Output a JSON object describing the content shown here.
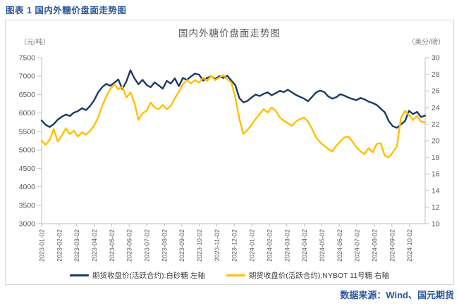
{
  "header": {
    "caption": "图表 1 国内外糖价盘面走势图"
  },
  "footer": {
    "source": "数据来源：Wind、国元期货"
  },
  "colors": {
    "accent_blue": "#2B579A",
    "domestic_line": "#1B3A66",
    "nybot_line": "#FFC000",
    "axis_gray": "#BFBFBF",
    "text_gray": "#595959"
  },
  "chart_data": {
    "type": "line",
    "title": "国内外糖价盘面走势图",
    "left_axis": {
      "unit": "（元/吨）",
      "min": 3000,
      "max": 7500,
      "step": 500,
      "ticks": [
        7500,
        7000,
        6500,
        6000,
        5500,
        5000,
        4500,
        4000,
        3500,
        3000
      ]
    },
    "right_axis": {
      "unit": "（美分/磅）",
      "min": 10,
      "max": 30,
      "step": 2,
      "ticks": [
        30,
        28,
        26,
        24,
        22,
        20,
        18,
        16,
        14,
        12,
        10
      ]
    },
    "grid": "off",
    "legend_position": "bottom",
    "x_labels": [
      "2023-01-02",
      "2023-02-02",
      "2023-03-02",
      "2023-04-02",
      "2023-05-02",
      "2023-06-02",
      "2023-07-02",
      "2023-08-02",
      "2023-09-02",
      "2023-10-02",
      "2023-11-02",
      "2023-12-02",
      "2024-01-02",
      "2024-02-02",
      "2024-03-02",
      "2024-04-02",
      "2024-05-02",
      "2024-06-02",
      "2024-07-02",
      "2024-08-02",
      "2024-09-02",
      "2024-10-02"
    ],
    "x_sampling": "weekly",
    "legend": [
      {
        "id": "domestic",
        "label": "期货收盘价(活跃合约):白砂糖 左轴",
        "color": "#1B3A66"
      },
      {
        "id": "nybot",
        "label": "期货收盘价(活跃合约):NYBOT 11号糖 右轴",
        "color": "#FFC000"
      }
    ],
    "series": [
      {
        "id": "domestic",
        "name": "期货收盘价(活跃合约):白砂糖",
        "axis": "left",
        "color": "#1B3A66",
        "values": [
          5800,
          5680,
          5620,
          5700,
          5820,
          5900,
          5960,
          5920,
          6010,
          6050,
          6130,
          6080,
          6190,
          6340,
          6560,
          6700,
          6790,
          6740,
          6820,
          6910,
          6650,
          6860,
          7160,
          6940,
          6780,
          6900,
          6760,
          6700,
          6830,
          6750,
          6660,
          6870,
          6800,
          6940,
          6730,
          6950,
          6900,
          6990,
          7070,
          7040,
          6880,
          6950,
          7000,
          6920,
          7000,
          6950,
          7010,
          6880,
          6750,
          6400,
          6290,
          6330,
          6420,
          6500,
          6460,
          6520,
          6560,
          6480,
          6540,
          6600,
          6570,
          6630,
          6560,
          6490,
          6440,
          6390,
          6320,
          6440,
          6560,
          6610,
          6570,
          6450,
          6390,
          6430,
          6510,
          6470,
          6420,
          6380,
          6350,
          6410,
          6370,
          6310,
          6270,
          6220,
          6120,
          6020,
          5780,
          5640,
          5600,
          5690,
          5780,
          6060,
          5970,
          6030,
          5890,
          5930
        ]
      },
      {
        "id": "nybot",
        "name": "期货收盘价(活跃合约):NYBOT 11号糖",
        "axis": "right",
        "color": "#FFC000",
        "values": [
          20.0,
          19.5,
          20.1,
          21.4,
          19.9,
          20.6,
          21.5,
          20.8,
          21.2,
          20.5,
          21.0,
          20.7,
          21.2,
          21.8,
          22.8,
          24.2,
          25.3,
          26.2,
          26.8,
          26.2,
          26.5,
          25.2,
          25.8,
          24.6,
          22.5,
          23.3,
          23.6,
          24.6,
          24.0,
          23.8,
          24.3,
          23.8,
          24.2,
          25.1,
          25.9,
          26.8,
          27.3,
          26.9,
          27.3,
          27.0,
          27.6,
          27.2,
          27.8,
          27.3,
          27.6,
          27.9,
          27.4,
          27.0,
          25.2,
          22.6,
          20.8,
          21.3,
          21.9,
          22.6,
          23.2,
          23.8,
          23.4,
          24.0,
          23.6,
          22.8,
          22.4,
          22.1,
          21.8,
          22.3,
          22.6,
          22.8,
          22.3,
          21.4,
          20.4,
          19.8,
          19.4,
          19.0,
          18.7,
          19.4,
          19.9,
          20.4,
          20.5,
          19.9,
          19.2,
          18.7,
          18.4,
          19.1,
          18.6,
          19.6,
          19.7,
          18.2,
          18.0,
          18.6,
          19.3,
          22.7,
          23.6,
          23.1,
          22.5,
          23.0,
          22.3,
          22.2
        ]
      }
    ]
  }
}
